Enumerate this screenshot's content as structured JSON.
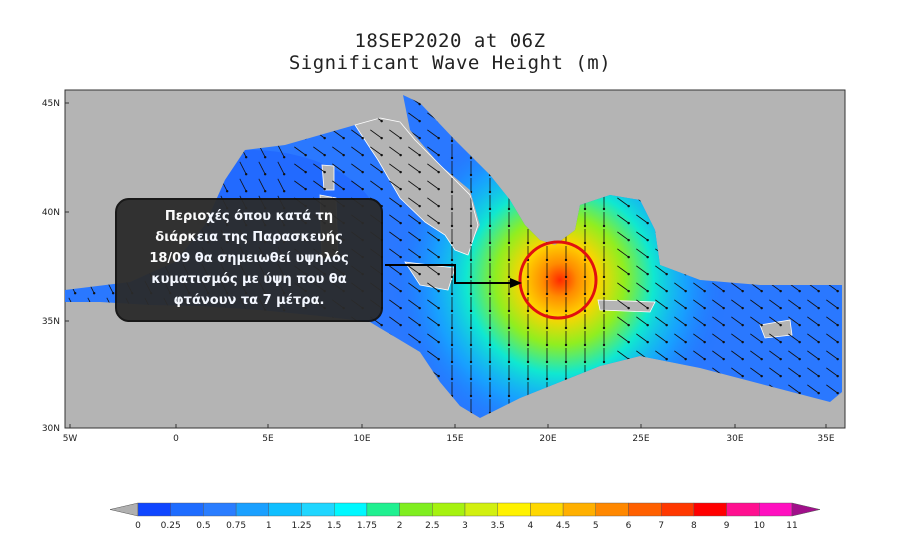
{
  "title": {
    "line1": "18SEP2020 at 06Z",
    "line2": "Significant Wave Height (m)"
  },
  "map": {
    "lat_ticks": [
      "45N",
      "40N",
      "35N",
      "30N"
    ],
    "lon_ticks": [
      "5W",
      "0",
      "5E",
      "10E",
      "15E",
      "20E",
      "25E",
      "30E",
      "35E"
    ],
    "land_color": "#b4b4b4",
    "highlight_circle_color": "#e01010"
  },
  "annotation": {
    "lines": [
      "Περιοχές όπου κατά τη",
      "διάρκεια της Παρασκευής",
      "18/09 θα σημειωθεί υψηλός",
      "κυματισμός με ύψη που θα",
      "φτάνουν τα 7 μέτρα."
    ]
  },
  "colorbar": {
    "labels": [
      "0",
      "0.25",
      "0.5",
      "0.75",
      "1",
      "1.25",
      "1.5",
      "1.75",
      "2",
      "2.5",
      "3",
      "3.5",
      "4",
      "4.5",
      "5",
      "6",
      "7",
      "8",
      "9",
      "10",
      "11"
    ],
    "colors": [
      "#1046ff",
      "#1e6cff",
      "#2a7dff",
      "#1aa0ff",
      "#10bfff",
      "#20d6ff",
      "#00f8ff",
      "#20f090",
      "#80ee20",
      "#a6f210",
      "#d2f010",
      "#fff200",
      "#ffd800",
      "#ffb000",
      "#ff8800",
      "#ff6000",
      "#ff3800",
      "#ff0000",
      "#ff1090",
      "#ff10c0"
    ],
    "under_color": "#b0b0b0",
    "over_color": "#a0108a"
  }
}
